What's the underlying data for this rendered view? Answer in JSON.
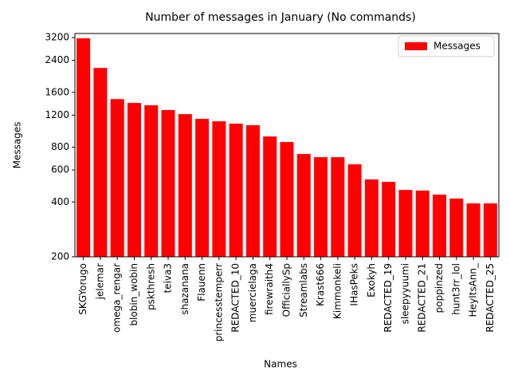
{
  "chart_data": {
    "type": "bar",
    "title": "Number of messages in January (No commands)",
    "xlabel": "Names",
    "ylabel": "Messages",
    "categories": [
      "SKGYorugo",
      "jelemar",
      "omega_rengar",
      "blobin_wobin",
      "pskthresh",
      "teiva3",
      "shazanana",
      "Flauenn",
      "princesstemperr",
      "REDACTED_10",
      "muercielaga",
      "firewraith4",
      "OfficiallySp",
      "Streamlabs",
      "Krast666",
      "Kimmonkeli",
      "IHasPeks",
      "Exokyh",
      "REDACTED_19",
      "sleepyyuumi",
      "REDACTED_21",
      "poppinzed",
      "hunt3rr_lol",
      "HeyItsAnn_",
      "REDACTED_25"
    ],
    "series": [
      {
        "name": "Messages",
        "color": "#ff0000",
        "values": [
          3170,
          2180,
          1470,
          1400,
          1360,
          1280,
          1215,
          1145,
          1110,
          1077,
          1056,
          916,
          854,
          734,
          705,
          705,
          644,
          532,
          516,
          466,
          462,
          439,
          418,
          393,
          393
        ]
      }
    ],
    "ylim": [
      200,
      3370
    ],
    "yticks": [
      200,
      400,
      600,
      800,
      1200,
      1600,
      2400,
      3200
    ],
    "yscale": "log",
    "legend": "upper right"
  }
}
